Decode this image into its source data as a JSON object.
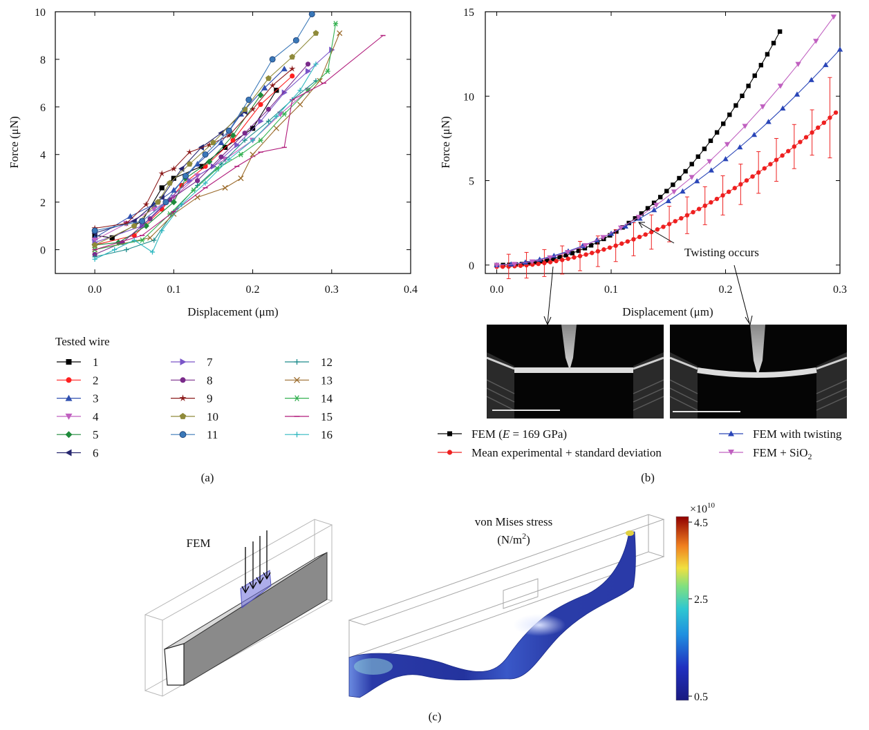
{
  "panel_labels": {
    "a": "(a)",
    "b": "(b)",
    "c": "(c)"
  },
  "chart_data": [
    {
      "panel": "(a)",
      "type": "line",
      "xlabel": "Displacement (μm)",
      "ylabel": "Force (μN)",
      "xlim": [
        -0.05,
        0.4
      ],
      "ylim": [
        -1,
        10
      ],
      "xticks": [
        "0.0",
        "0.1",
        "0.2",
        "0.3",
        "0.4"
      ],
      "yticks": [
        "0",
        "2",
        "4",
        "6",
        "8",
        "10"
      ],
      "legend_title": "Tested wire",
      "series": [
        {
          "name": "1",
          "color": "#000000",
          "marker": "square",
          "x": [
            0,
            0.022,
            0.06,
            0.085,
            0.1,
            0.135,
            0.165,
            0.2,
            0.23
          ],
          "y": [
            0.6,
            0.5,
            1.2,
            2.6,
            3.0,
            3.5,
            4.3,
            5.1,
            6.7
          ]
        },
        {
          "name": "2",
          "color": "#ff2020",
          "marker": "circle",
          "x": [
            0,
            0.05,
            0.085,
            0.11,
            0.14,
            0.175,
            0.21,
            0.25
          ],
          "y": [
            0.2,
            0.6,
            1.7,
            2.7,
            3.5,
            4.6,
            6.1,
            7.3
          ]
        },
        {
          "name": "3",
          "color": "#3050b0",
          "marker": "triangle-up",
          "x": [
            0,
            0.045,
            0.075,
            0.1,
            0.13,
            0.16,
            0.185,
            0.215,
            0.24
          ],
          "y": [
            0.5,
            1.4,
            1.9,
            2.5,
            3.6,
            4.5,
            5.7,
            6.8,
            7.6
          ]
        },
        {
          "name": "4",
          "color": "#c060c0",
          "marker": "triangle-down",
          "x": [
            0,
            0.04,
            0.075,
            0.1,
            0.13,
            0.165,
            0.2,
            0.235,
            0.27
          ],
          "y": [
            0.4,
            1.1,
            1.7,
            2.2,
            3.1,
            3.8,
            4.6,
            5.7,
            6.7
          ]
        },
        {
          "name": "5",
          "color": "#1e8a3a",
          "marker": "diamond",
          "x": [
            0,
            0.03,
            0.065,
            0.1,
            0.115,
            0.145,
            0.175,
            0.21
          ],
          "y": [
            0.2,
            0.3,
            1.0,
            2.0,
            3.0,
            3.7,
            4.8,
            6.5
          ]
        },
        {
          "name": "6",
          "color": "#26266e",
          "marker": "triangle-left",
          "x": [
            0,
            0.05,
            0.085,
            0.11,
            0.135,
            0.16,
            0.19
          ],
          "y": [
            0.7,
            1.2,
            2.2,
            3.4,
            4.3,
            4.9,
            5.8
          ]
        },
        {
          "name": "7",
          "color": "#7a55c8",
          "marker": "triangle-right",
          "x": [
            0,
            0.06,
            0.09,
            0.12,
            0.15,
            0.18,
            0.21,
            0.24,
            0.27,
            0.3
          ],
          "y": [
            0.3,
            1.0,
            2.0,
            2.9,
            3.5,
            4.4,
            5.4,
            6.6,
            7.5,
            8.4
          ]
        },
        {
          "name": "8",
          "color": "#7a2a8a",
          "marker": "circle",
          "x": [
            0,
            0.035,
            0.07,
            0.095,
            0.13,
            0.16,
            0.19,
            0.22,
            0.27
          ],
          "y": [
            -0.2,
            0.3,
            1.3,
            2.1,
            2.9,
            3.9,
            4.9,
            5.9,
            7.8
          ]
        },
        {
          "name": "9",
          "color": "#8b1a1a",
          "marker": "star",
          "x": [
            0,
            0.04,
            0.065,
            0.085,
            0.1,
            0.12,
            0.145,
            0.17,
            0.2,
            0.225,
            0.25
          ],
          "y": [
            0.9,
            1.1,
            1.9,
            3.2,
            3.4,
            4.1,
            4.4,
            4.8,
            5.9,
            6.9,
            7.6
          ]
        },
        {
          "name": "10",
          "color": "#8f8a3a",
          "marker": "pentagon",
          "x": [
            0,
            0.05,
            0.08,
            0.095,
            0.12,
            0.15,
            0.19,
            0.22,
            0.25,
            0.28
          ],
          "y": [
            0.2,
            1.0,
            2.0,
            2.8,
            3.6,
            4.5,
            5.9,
            7.2,
            8.1,
            9.1
          ]
        },
        {
          "name": "11",
          "color": "#3a78b8",
          "marker": "circle-filled",
          "x": [
            0,
            0.06,
            0.09,
            0.115,
            0.14,
            0.17,
            0.195,
            0.225,
            0.255,
            0.275
          ],
          "y": [
            0.8,
            1.2,
            2.0,
            3.1,
            4.0,
            5.0,
            6.3,
            8.0,
            8.8,
            9.9
          ]
        },
        {
          "name": "12",
          "color": "#1a8a8a",
          "marker": "plus",
          "x": [
            0,
            0.04,
            0.075,
            0.1,
            0.13,
            0.16,
            0.19,
            0.22,
            0.25,
            0.28
          ],
          "y": [
            -0.3,
            0.0,
            0.4,
            1.6,
            2.7,
            3.6,
            4.6,
            5.4,
            6.3,
            7.1
          ]
        },
        {
          "name": "13",
          "color": "#9a6a2a",
          "marker": "x",
          "x": [
            0,
            0.07,
            0.1,
            0.13,
            0.165,
            0.185,
            0.2,
            0.23,
            0.26,
            0.285,
            0.31
          ],
          "y": [
            0.0,
            0.5,
            1.5,
            2.2,
            2.6,
            3.0,
            4.0,
            5.1,
            6.1,
            7.1,
            9.1
          ]
        },
        {
          "name": "14",
          "color": "#33b050",
          "marker": "asterisk",
          "x": [
            0,
            0.06,
            0.095,
            0.125,
            0.155,
            0.185,
            0.21,
            0.24,
            0.27,
            0.295,
            0.305
          ],
          "y": [
            0.0,
            0.4,
            1.5,
            2.5,
            3.4,
            4.0,
            4.6,
            5.7,
            6.7,
            7.5,
            9.5
          ]
        },
        {
          "name": "15",
          "color": "#b01a7a",
          "marker": "dash",
          "x": [
            0,
            0.06,
            0.1,
            0.14,
            0.18,
            0.21,
            0.24,
            0.25,
            0.29,
            0.365
          ],
          "y": [
            0.0,
            0.6,
            1.6,
            2.6,
            3.5,
            4.1,
            4.3,
            6.3,
            7.0,
            9.0
          ]
        },
        {
          "name": "16",
          "color": "#30b8c0",
          "marker": "plus-small",
          "x": [
            0,
            0.025,
            0.05,
            0.073,
            0.085,
            0.11,
            0.14,
            0.17,
            0.2,
            0.23,
            0.26,
            0.28
          ],
          "y": [
            -0.4,
            0.0,
            0.4,
            -0.1,
            0.8,
            1.9,
            2.8,
            3.8,
            4.6,
            5.6,
            6.7,
            7.8
          ]
        }
      ]
    },
    {
      "panel": "(b)",
      "type": "line",
      "xlabel": "Displacement (μm)",
      "ylabel": "Force (μN)",
      "xlim": [
        -0.01,
        0.3
      ],
      "ylim": [
        -0.5,
        15
      ],
      "xticks": [
        "0.0",
        "0.1",
        "0.2",
        "0.3"
      ],
      "yticks": [
        "0",
        "5",
        "10",
        "15"
      ],
      "annotation": "Twisting occurs",
      "series": [
        {
          "name": "FEM (E = 169 GPa)",
          "color": "#000000",
          "marker": "square",
          "model": "power",
          "a": 320,
          "p": 2.25,
          "xmax": 0.252,
          "step": 0.0055
        },
        {
          "name": "Mean experimental + standard deviation",
          "color": "#ee2020",
          "marker": "circle",
          "model": "power",
          "a": 92,
          "p": 1.9,
          "offset": -0.1,
          "xmax": 0.3,
          "step": 0.0052,
          "errorbars_every": 3,
          "error_span": [
            0.7,
            1.4
          ]
        },
        {
          "name": "FEM with twisting",
          "color": "#2a46b8",
          "marker": "triangle-up",
          "model": "power",
          "a": 105,
          "p": 1.75,
          "xmax": 0.3,
          "step": 0.0125
        },
        {
          "name": "FEM + SiO2",
          "color": "#c060c0",
          "marker": "triangle-down",
          "model": "power",
          "a": 150,
          "p": 1.9,
          "xmax": 0.3,
          "step": 0.0155
        }
      ]
    }
  ],
  "panel_b_legend": [
    {
      "text_before": "FEM (",
      "italic": "E",
      "text_after": " = 169 GPa)"
    },
    {
      "text_before": "Mean experimental + standard deviation",
      "italic": "",
      "text_after": ""
    },
    {
      "text_before": "FEM with twisting",
      "italic": "",
      "text_after": ""
    },
    {
      "text_before": "FEM + SiO",
      "italic": "",
      "text_after": "",
      "subscript": "2"
    }
  ],
  "panel_c": {
    "fem_label": "FEM",
    "stress_title": "von Mises stress",
    "stress_unit_base": "(N/m",
    "stress_unit_sup": "2",
    "stress_unit_end": ")",
    "colorbar_multiplier": "×10",
    "colorbar_exponent": "10",
    "colorbar_ticks": [
      "4.5",
      "2.5",
      "0.5"
    ]
  }
}
